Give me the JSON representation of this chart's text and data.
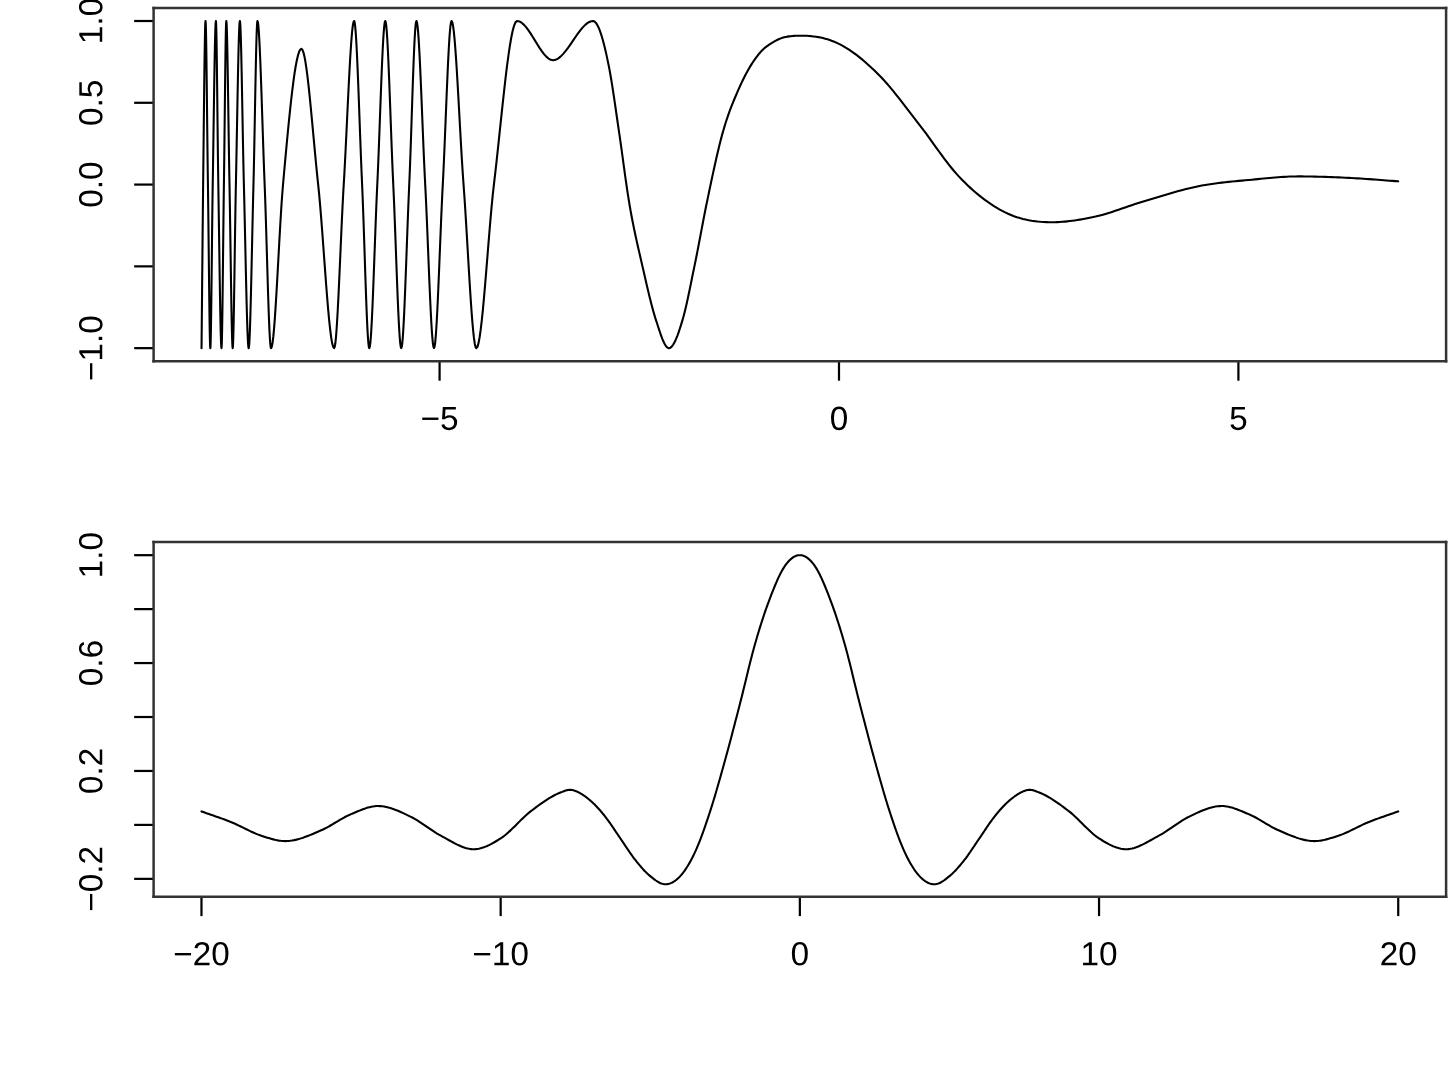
{
  "chart_data": [
    {
      "type": "line",
      "x": [
        -7.98,
        -7.96,
        -7.93,
        -7.9,
        -7.87,
        -7.84,
        -7.8,
        -7.77,
        -7.73,
        -7.7,
        -7.67,
        -7.63,
        -7.59,
        -7.55,
        -7.5,
        -7.45,
        -7.39,
        -7.33,
        -7.28,
        -7.19,
        -7.11,
        -6.96,
        -6.73,
        -6.52,
        -6.32,
        -6.2,
        -6.07,
        -5.97,
        -5.88,
        -5.78,
        -5.68,
        -5.58,
        -5.48,
        -5.38,
        -5.29,
        -5.18,
        -5.07,
        -4.96,
        -4.85,
        -4.7,
        -4.54,
        -4.32,
        -4.03,
        -3.58,
        -3.08,
        -2.88,
        -2.75,
        -2.63,
        -2.46,
        -2.29,
        -2.13,
        -1.96,
        -1.81,
        -1.65,
        -1.46,
        -1.25,
        -1.0,
        -0.79,
        -0.46,
        0.0,
        0.5,
        1.0,
        1.5,
        2.08,
        2.67,
        3.17,
        3.83,
        4.5,
        5.17,
        5.75,
        6.42,
        7.0
      ],
      "series": [
        {
          "color": "#000000",
          "values": [
            -1,
            0,
            1,
            0,
            -1,
            0,
            1,
            0,
            -1,
            0,
            1,
            0,
            -1,
            0,
            1,
            0,
            -1,
            0,
            1,
            0,
            -1,
            0,
            0.83,
            0,
            -1,
            0,
            1,
            0,
            -1,
            0,
            1,
            0,
            -1,
            0,
            1,
            0,
            -1,
            0,
            1,
            0,
            -1,
            0,
            1,
            0.76,
            1,
            0.72,
            0.31,
            -0.1,
            -0.5,
            -0.83,
            -1,
            -0.83,
            -0.5,
            -0.1,
            0.31,
            0.59,
            0.8,
            0.88,
            0.91,
            0.86,
            0.67,
            0.37,
            0.05,
            -0.17,
            -0.23,
            -0.2,
            -0.1,
            -0.01,
            0.03,
            0.05,
            0.04,
            0.02
          ]
        }
      ],
      "xlim": [
        -8.58,
        7.6
      ],
      "ylim": [
        -1.08,
        1.08
      ],
      "xticks": [
        {
          "value": -5,
          "label": "−5"
        },
        0,
        5
      ],
      "yticks": [
        {
          "value": -1.0,
          "label": "−1.0"
        },
        {
          "value": -0.5,
          "label": null
        },
        {
          "value": 0,
          "label": "0.0"
        },
        0.5,
        {
          "value": 1,
          "label": "1.0"
        }
      ]
    },
    {
      "type": "line",
      "x": [
        -20,
        -19,
        -18,
        -17.2,
        -16,
        -15,
        -14.1,
        -13,
        -12,
        -10.9,
        -10,
        -9,
        -8,
        -7.7,
        -7,
        -6.5,
        -6,
        -5.5,
        -5,
        -4.5,
        -4,
        -3.5,
        -3,
        -2.5,
        -2,
        -1.5,
        -1,
        -0.5,
        0,
        0.5,
        1,
        1.5,
        2,
        2.5,
        3,
        3.5,
        4,
        4.5,
        5,
        5.5,
        6,
        6.5,
        7,
        7.7,
        8,
        9,
        10,
        10.9,
        12,
        13,
        14.1,
        15,
        16,
        17.2,
        18,
        19,
        20
      ],
      "series": [
        {
          "color": "#000000",
          "values": [
            0.05,
            0.01,
            -0.04,
            -0.06,
            -0.02,
            0.04,
            0.07,
            0.03,
            -0.04,
            -0.09,
            -0.05,
            0.05,
            0.12,
            0.13,
            0.09,
            0.03,
            -0.05,
            -0.13,
            -0.19,
            -0.22,
            -0.19,
            -0.1,
            0.05,
            0.24,
            0.45,
            0.67,
            0.84,
            0.96,
            1.0,
            0.96,
            0.84,
            0.67,
            0.45,
            0.24,
            0.05,
            -0.1,
            -0.19,
            -0.22,
            -0.19,
            -0.13,
            -0.05,
            0.03,
            0.09,
            0.13,
            0.12,
            0.05,
            -0.05,
            -0.09,
            -0.04,
            0.03,
            0.07,
            0.04,
            -0.02,
            -0.06,
            -0.04,
            0.01,
            0.05
          ]
        }
      ],
      "xlim": [
        -21.6,
        21.6
      ],
      "ylim": [
        -0.266,
        1.049
      ],
      "xticks": [
        {
          "value": -20,
          "label": "−20"
        },
        {
          "value": -10,
          "label": "−10"
        },
        0,
        10,
        20
      ],
      "yticks": [
        {
          "value": -0.2,
          "label": "−0.2"
        },
        {
          "value": 0.0,
          "label": null
        },
        0.2,
        {
          "value": 0.4,
          "label": null
        },
        0.6,
        {
          "value": 0.8,
          "label": null
        },
        {
          "value": 1,
          "label": "1.0"
        }
      ]
    }
  ]
}
